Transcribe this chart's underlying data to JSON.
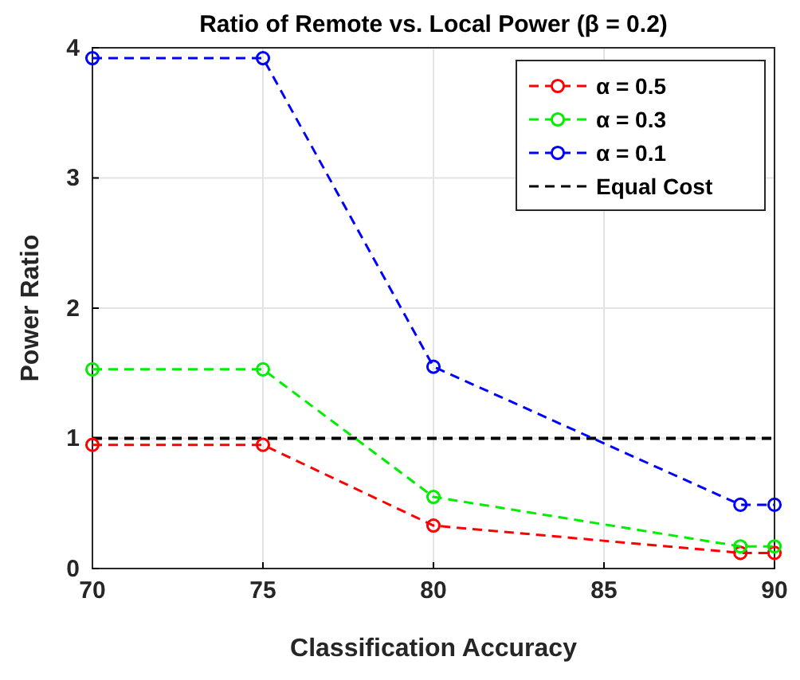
{
  "chart_data": {
    "type": "line",
    "title": "Ratio of Remote vs. Local Power (β = 0.2)",
    "xlabel": "Classification Accuracy",
    "ylabel": "Power Ratio",
    "x": [
      70,
      75,
      80,
      89,
      90
    ],
    "series": [
      {
        "name": "α = 0.5",
        "color": "#ff0000",
        "values": [
          0.95,
          0.95,
          0.33,
          0.12,
          0.12
        ]
      },
      {
        "name": "α = 0.3",
        "color": "#00ee00",
        "values": [
          1.53,
          1.53,
          0.55,
          0.17,
          0.17
        ]
      },
      {
        "name": "α = 0.1",
        "color": "#0000ff",
        "values": [
          3.92,
          3.92,
          1.55,
          0.49,
          0.49
        ]
      }
    ],
    "ref_lines": [
      {
        "axis": "y",
        "value": 1,
        "label": "Equal Cost",
        "color": "#000000",
        "line_style": "dashed"
      }
    ],
    "xlim": [
      70,
      90
    ],
    "xticks": [
      70,
      75,
      80,
      85,
      90
    ],
    "ylim": [
      0,
      4
    ],
    "yticks": [
      0,
      1,
      2,
      3,
      4
    ],
    "grid": true,
    "legend": "top right",
    "marker": "circle",
    "line_style": "dashed"
  }
}
